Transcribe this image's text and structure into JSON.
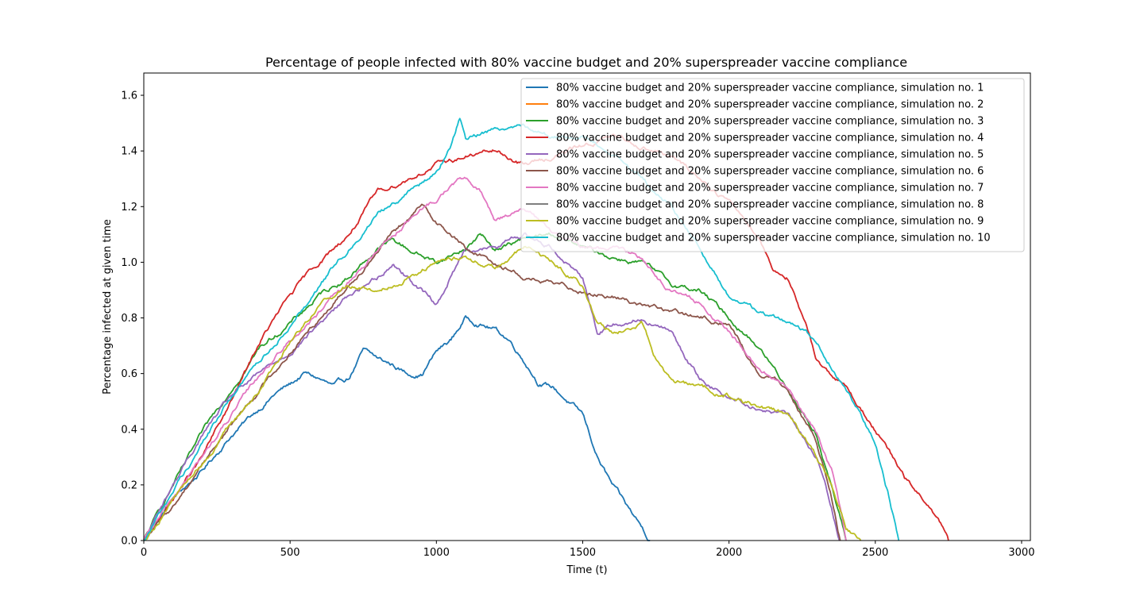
{
  "chart_data": {
    "type": "line",
    "title": "Percentage of people infected with 80% vaccine budget and 20% superspreader vaccine compliance",
    "xlabel": "Time (t)",
    "ylabel": "Percentage infected at given time",
    "xlim": [
      0,
      3030
    ],
    "ylim": [
      0,
      1.68
    ],
    "xticks": [
      0,
      500,
      1000,
      1500,
      2000,
      2500,
      3000
    ],
    "yticks": [
      0.0,
      0.2,
      0.4,
      0.6,
      0.8,
      1.0,
      1.2,
      1.4,
      1.6
    ],
    "xtick_labels": [
      "0",
      "500",
      "1000",
      "1500",
      "2000",
      "2500",
      "3000"
    ],
    "ytick_labels": [
      "0.0",
      "0.2",
      "0.4",
      "0.6",
      "0.8",
      "1.0",
      "1.2",
      "1.4",
      "1.6"
    ],
    "grid": false,
    "legend_position": "top-right",
    "series": [
      {
        "name": "80% vaccine budget and 20% superspreader vaccine compliance, simulation no. 1",
        "color": "#1f77b4",
        "x": [
          0,
          100,
          200,
          300,
          400,
          450,
          500,
          550,
          600,
          650,
          700,
          750,
          800,
          850,
          900,
          950,
          1000,
          1050,
          1100,
          1150,
          1200,
          1250,
          1300,
          1350,
          1400,
          1450,
          1500,
          1550,
          1600,
          1650,
          1700,
          1730
        ],
        "y": [
          0,
          0.15,
          0.25,
          0.38,
          0.48,
          0.53,
          0.56,
          0.6,
          0.58,
          0.55,
          0.58,
          0.68,
          0.65,
          0.63,
          0.6,
          0.6,
          0.68,
          0.72,
          0.8,
          0.78,
          0.76,
          0.72,
          0.65,
          0.57,
          0.55,
          0.5,
          0.45,
          0.3,
          0.2,
          0.12,
          0.05,
          0
        ]
      },
      {
        "name": "80% vaccine budget and 20% superspreader vaccine compliance, simulation no. 2",
        "color": "#ff7f0e",
        "x": [],
        "y": []
      },
      {
        "name": "80% vaccine budget and 20% superspreader vaccine compliance, simulation no. 3",
        "color": "#2ca02c",
        "x": [
          0,
          100,
          200,
          300,
          400,
          500,
          600,
          700,
          800,
          850,
          900,
          1000,
          1100,
          1150,
          1200,
          1300,
          1400,
          1500,
          1600,
          1700,
          1800,
          1900,
          2000,
          2100,
          2200,
          2300,
          2350,
          2400
        ],
        "y": [
          0,
          0.2,
          0.38,
          0.55,
          0.7,
          0.78,
          0.88,
          0.95,
          1.05,
          1.08,
          1.05,
          1.0,
          1.05,
          1.1,
          1.05,
          1.08,
          1.1,
          1.05,
          1.02,
          1.0,
          0.92,
          0.9,
          0.8,
          0.7,
          0.55,
          0.38,
          0.2,
          0
        ]
      },
      {
        "name": "80% vaccine budget and 20% superspreader vaccine compliance, simulation no. 4",
        "color": "#d62728",
        "x": [
          0,
          100,
          200,
          300,
          400,
          500,
          600,
          700,
          800,
          900,
          1000,
          1100,
          1200,
          1300,
          1400,
          1500,
          1600,
          1700,
          1800,
          1900,
          2000,
          2100,
          2150,
          2200,
          2250,
          2300,
          2400,
          2500,
          2600,
          2700,
          2750
        ],
        "y": [
          0,
          0.15,
          0.3,
          0.5,
          0.72,
          0.88,
          1.0,
          1.1,
          1.25,
          1.3,
          1.35,
          1.38,
          1.4,
          1.35,
          1.38,
          1.42,
          1.45,
          1.42,
          1.38,
          1.3,
          1.22,
          1.1,
          0.98,
          0.95,
          0.8,
          0.65,
          0.55,
          0.4,
          0.22,
          0.1,
          0
        ]
      },
      {
        "name": "80% vaccine budget and 20% superspreader vaccine compliance, simulation no. 5",
        "color": "#9467bd",
        "x": [
          0,
          100,
          200,
          300,
          400,
          500,
          600,
          700,
          800,
          850,
          900,
          950,
          1000,
          1100,
          1200,
          1300,
          1400,
          1500,
          1550,
          1600,
          1700,
          1800,
          1900,
          2000,
          2100,
          2200,
          2300,
          2350,
          2380
        ],
        "y": [
          0,
          0.2,
          0.38,
          0.52,
          0.6,
          0.68,
          0.78,
          0.88,
          0.95,
          1.0,
          0.95,
          0.9,
          0.85,
          1.05,
          1.05,
          1.1,
          1.05,
          0.95,
          0.75,
          0.78,
          0.8,
          0.75,
          0.58,
          0.52,
          0.48,
          0.45,
          0.3,
          0.12,
          0
        ]
      },
      {
        "name": "80% vaccine budget and 20% superspreader vaccine compliance, simulation no. 6",
        "color": "#8c564b",
        "x": [
          0,
          100,
          200,
          300,
          400,
          500,
          600,
          700,
          800,
          900,
          950,
          1000,
          1050,
          1100,
          1200,
          1300,
          1400,
          1500,
          1600,
          1700,
          1800,
          1900,
          2000,
          2100,
          2200,
          2300,
          2350,
          2380
        ],
        "y": [
          0,
          0.12,
          0.28,
          0.42,
          0.55,
          0.68,
          0.8,
          0.92,
          1.05,
          1.15,
          1.2,
          1.15,
          1.1,
          1.05,
          1.0,
          0.95,
          0.92,
          0.9,
          0.88,
          0.85,
          0.82,
          0.8,
          0.78,
          0.6,
          0.55,
          0.35,
          0.15,
          0
        ]
      },
      {
        "name": "80% vaccine budget and 20% superspreader vaccine compliance, simulation no. 7",
        "color": "#e377c2",
        "x": [
          0,
          100,
          200,
          300,
          400,
          500,
          600,
          700,
          800,
          900,
          1000,
          1050,
          1100,
          1150,
          1200,
          1300,
          1400,
          1500,
          1600,
          1700,
          1800,
          1900,
          2000,
          2100,
          2200,
          2300,
          2350,
          2400
        ],
        "y": [
          0,
          0.15,
          0.3,
          0.45,
          0.6,
          0.72,
          0.82,
          0.92,
          1.05,
          1.15,
          1.22,
          1.28,
          1.3,
          1.25,
          1.15,
          1.2,
          1.1,
          1.05,
          1.05,
          1.02,
          0.9,
          0.85,
          0.75,
          0.62,
          0.55,
          0.38,
          0.25,
          0
        ]
      },
      {
        "name": "80% vaccine budget and 20% superspreader vaccine compliance, simulation no. 8",
        "color": "#7f7f7f",
        "x": [],
        "y": []
      },
      {
        "name": "80% vaccine budget and 20% superspreader vaccine compliance, simulation no. 9",
        "color": "#bcbd22",
        "x": [
          0,
          100,
          200,
          300,
          400,
          500,
          600,
          700,
          800,
          900,
          1000,
          1100,
          1200,
          1300,
          1400,
          1500,
          1550,
          1600,
          1700,
          1750,
          1800,
          1900,
          2000,
          2100,
          2200,
          2300,
          2350,
          2400,
          2450
        ],
        "y": [
          0,
          0.15,
          0.28,
          0.42,
          0.55,
          0.72,
          0.85,
          0.92,
          0.9,
          0.95,
          1.0,
          1.02,
          0.98,
          1.05,
          1.0,
          0.92,
          0.78,
          0.75,
          0.78,
          0.65,
          0.58,
          0.55,
          0.52,
          0.48,
          0.45,
          0.3,
          0.2,
          0.05,
          0
        ]
      },
      {
        "name": "80% vaccine budget and 20% superspreader vaccine compliance, simulation no. 10",
        "color": "#17becf",
        "x": [
          0,
          100,
          200,
          300,
          400,
          500,
          600,
          700,
          800,
          900,
          1000,
          1050,
          1080,
          1100,
          1200,
          1300,
          1400,
          1500,
          1600,
          1700,
          1800,
          1900,
          2000,
          2100,
          2200,
          2300,
          2400,
          2500,
          2550,
          2580
        ],
        "y": [
          0,
          0.18,
          0.35,
          0.52,
          0.65,
          0.78,
          0.92,
          1.05,
          1.18,
          1.25,
          1.32,
          1.42,
          1.52,
          1.45,
          1.48,
          1.5,
          1.45,
          1.45,
          1.4,
          1.3,
          1.2,
          1.05,
          0.88,
          0.82,
          0.78,
          0.72,
          0.55,
          0.35,
          0.15,
          0
        ]
      }
    ]
  }
}
